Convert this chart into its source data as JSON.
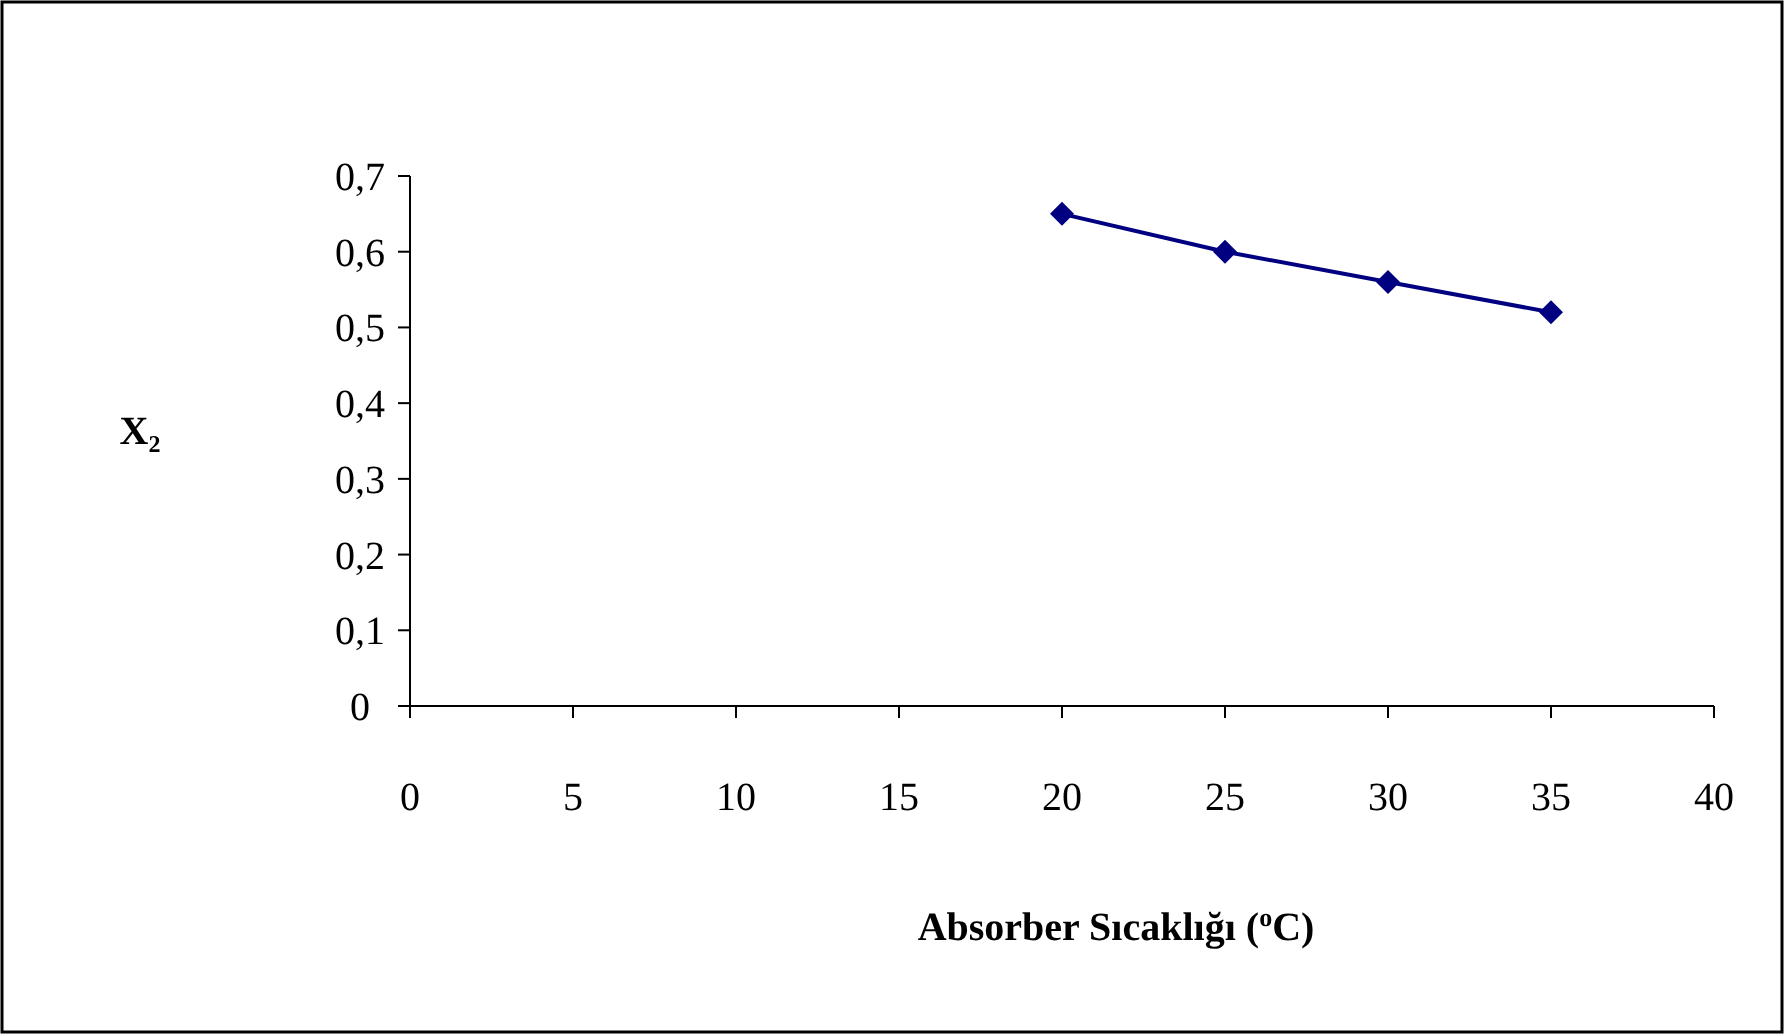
{
  "chart_data": {
    "type": "line",
    "xlabel": "Absorber Sıcaklığı  ($^{o}$C)",
    "ylabel": "X₂",
    "x": [
      20,
      25,
      30,
      35
    ],
    "series": [
      {
        "color": "#000080",
        "values": [
          0.65,
          0.6,
          0.56,
          0.52
        ]
      }
    ],
    "xlim": [
      0,
      40
    ],
    "xticks": [
      0,
      5,
      10,
      15,
      20,
      25,
      30,
      35,
      40
    ],
    "ylim": [
      0,
      0.7
    ],
    "yticks": [
      0,
      {
        "value": 0.1,
        "label": "0,1"
      },
      {
        "value": 0.2,
        "label": "0,2"
      },
      {
        "value": 0.3,
        "label": "0,3"
      },
      {
        "value": 0.4,
        "label": "0,4"
      },
      {
        "value": 0.5,
        "label": "0,5"
      },
      {
        "value": 0.6,
        "label": "0,6"
      },
      {
        "value": 0.7,
        "label": "0,7"
      }
    ],
    "grid": false,
    "marker": "diamond",
    "line_style": "solid"
  }
}
